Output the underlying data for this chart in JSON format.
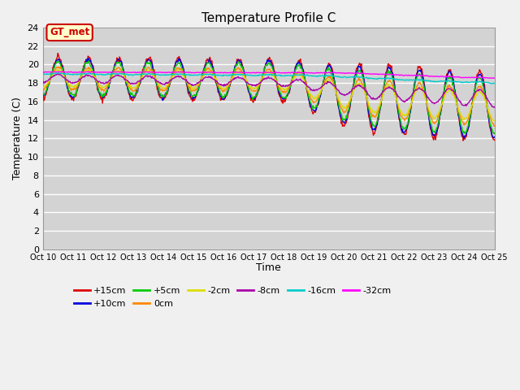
{
  "title": "Temperature Profile C",
  "xlabel": "Time",
  "ylabel": "Temperature (C)",
  "ylim": [
    0,
    24
  ],
  "yticks": [
    0,
    2,
    4,
    6,
    8,
    10,
    12,
    14,
    16,
    18,
    20,
    22,
    24
  ],
  "bg_color": "#d3d3d3",
  "fig_color": "#f0f0f0",
  "grid_color": "white",
  "annotation_text": "GT_met",
  "annotation_bg": "#ffffcc",
  "annotation_edge": "#cc0000",
  "series_colors": {
    "+15cm": "#dd0000",
    "+10cm": "#0000dd",
    "+5cm": "#00cc00",
    "0cm": "#ff8800",
    "-2cm": "#dddd00",
    "-8cm": "#aa00aa",
    "-16cm": "#00cccc",
    "-32cm": "#ff00ff"
  },
  "xtick_labels": [
    "Oct 10",
    "Oct 11",
    "Oct 12",
    "Oct 13",
    "Oct 14",
    "Oct 15",
    "Oct 16",
    "Oct 17",
    "Oct 18",
    "Oct 19",
    "Oct 20",
    "Oct 21",
    "Oct 22",
    "Oct 23",
    "Oct 24",
    "Oct 25"
  ],
  "n_days": 15,
  "pts_per_day": 48
}
